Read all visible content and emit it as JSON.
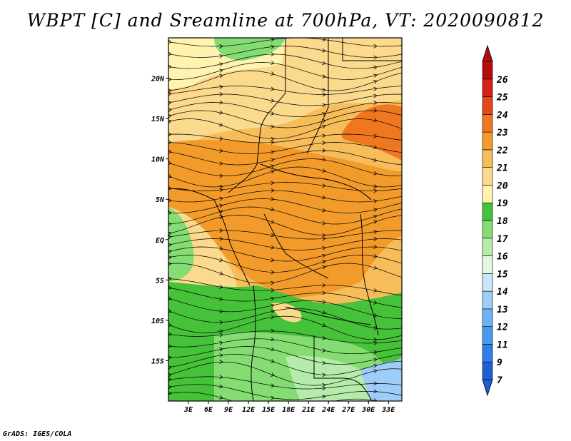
{
  "title": "WBPT [C] and Sreamline at 700hPa, VT: 2020090812",
  "credit": "GrADS: IGES/COLA",
  "map": {
    "projection": "latlon",
    "lon_range": [
      0,
      35
    ],
    "lat_range": [
      -20,
      25
    ],
    "x_ticks": [
      "3E",
      "6E",
      "9E",
      "12E",
      "15E",
      "18E",
      "21E",
      "24E",
      "27E",
      "30E",
      "33E"
    ],
    "x_tick_values": [
      3,
      6,
      9,
      12,
      15,
      18,
      21,
      24,
      27,
      30,
      33
    ],
    "y_ticks": [
      "20N",
      "15N",
      "10N",
      "5N",
      "EQ",
      "5S",
      "10S",
      "15S"
    ],
    "y_tick_values": [
      20,
      15,
      10,
      5,
      0,
      -5,
      -10,
      -15
    ]
  },
  "colorbar": {
    "levels": [
      "7",
      "9",
      "11",
      "12",
      "13",
      "14",
      "15",
      "16",
      "17",
      "18",
      "19",
      "20",
      "21",
      "22",
      "23",
      "24",
      "25",
      "26"
    ],
    "colors": [
      "#1f5fd6",
      "#2f7fe6",
      "#4a9af0",
      "#6fb3f4",
      "#9ecdf7",
      "#cbe6fa",
      "#e4f8e0",
      "#b6ecab",
      "#84dc73",
      "#46c13a",
      "#fff3b0",
      "#fbd98d",
      "#f7bd5a",
      "#f39b2a",
      "#ee7720",
      "#e5471a",
      "#d22314",
      "#b50d0a"
    ],
    "arrow_bottom_color": "#1f5fd6",
    "arrow_top_color": "#b50d0a"
  },
  "field_colors": {
    "green_dark": "#46c13a",
    "green_mid": "#84dc73",
    "green_light": "#b6ecab",
    "yellow_light": "#fff3b0",
    "yellow": "#fbd98d",
    "orange_light": "#f7bd5a",
    "orange": "#f39b2a",
    "red_orange": "#ee7720",
    "blue_light": "#9ecdf7"
  }
}
